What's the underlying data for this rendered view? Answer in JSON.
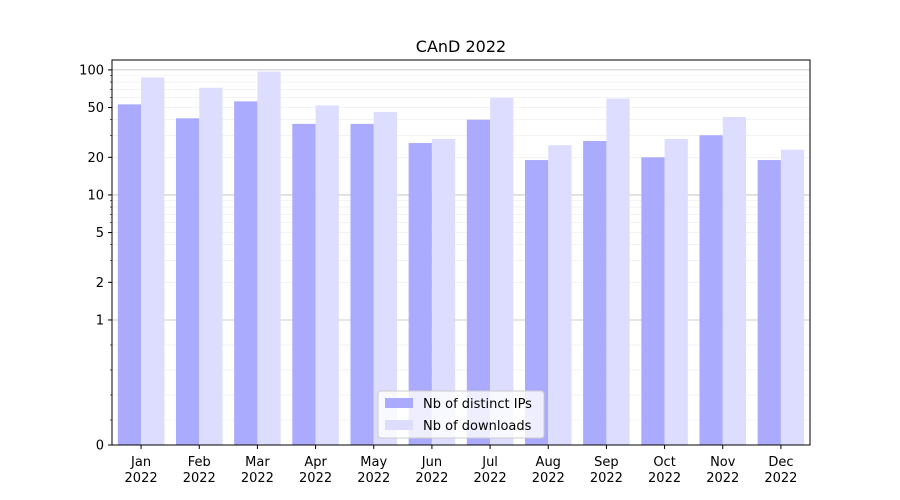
{
  "chart_data": {
    "type": "bar",
    "title": "CAnD 2022",
    "xlabel": "",
    "ylabel": "",
    "yscale": "symlog",
    "ylim": [
      0,
      120
    ],
    "y_ticks": [
      0,
      1,
      2,
      5,
      10,
      20,
      50,
      100
    ],
    "grid": "horizontal",
    "legend_position": "bottom-center",
    "categories": [
      [
        "Jan",
        "2022"
      ],
      [
        "Feb",
        "2022"
      ],
      [
        "Mar",
        "2022"
      ],
      [
        "Apr",
        "2022"
      ],
      [
        "May",
        "2022"
      ],
      [
        "Jun",
        "2022"
      ],
      [
        "Jul",
        "2022"
      ],
      [
        "Aug",
        "2022"
      ],
      [
        "Sep",
        "2022"
      ],
      [
        "Oct",
        "2022"
      ],
      [
        "Nov",
        "2022"
      ],
      [
        "Dec",
        "2022"
      ]
    ],
    "series": [
      {
        "name": "Nb of distinct IPs",
        "color": "#aaaaff",
        "values": [
          53,
          41,
          56,
          37,
          37,
          26,
          40,
          19,
          27,
          20,
          30,
          19
        ]
      },
      {
        "name": "Nb of downloads",
        "color": "#ddddff",
        "values": [
          87,
          72,
          97,
          52,
          46,
          28,
          60,
          25,
          59,
          28,
          42,
          23
        ]
      }
    ]
  }
}
